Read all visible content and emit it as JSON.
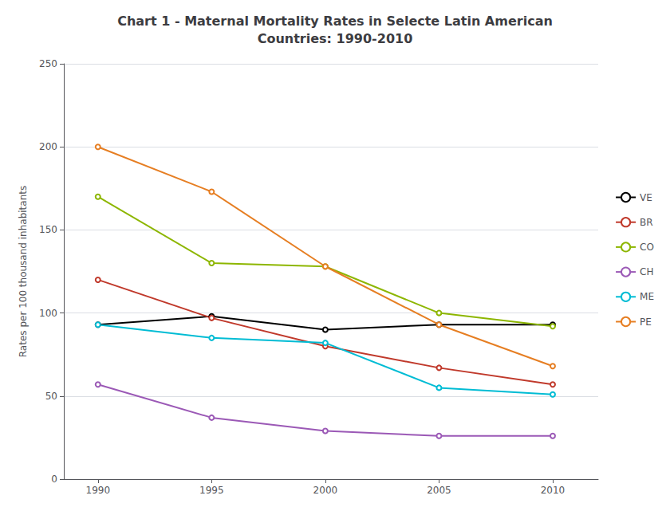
{
  "chart_data": {
    "type": "line",
    "title": "Chart 1 - Maternal Mortality Rates in Selecte Latin American\nCountries: 1990-2010",
    "ylabel": "Rates per 100 thousand inhabitants",
    "x": [
      1990,
      1995,
      2000,
      2005,
      2010
    ],
    "series": [
      {
        "name": "VE",
        "color": "#000000",
        "values": [
          93,
          98,
          90,
          93,
          93
        ]
      },
      {
        "name": "BR",
        "color": "#c0392b",
        "values": [
          120,
          97,
          80,
          67,
          57
        ]
      },
      {
        "name": "CO",
        "color": "#8db600",
        "values": [
          170,
          130,
          128,
          100,
          92
        ]
      },
      {
        "name": "CH",
        "color": "#9b59b6",
        "values": [
          57,
          37,
          29,
          26,
          26
        ]
      },
      {
        "name": "ME",
        "color": "#00bcd4",
        "values": [
          93,
          85,
          82,
          55,
          51
        ]
      },
      {
        "name": "PE",
        "color": "#e67e22",
        "values": [
          200,
          173,
          128,
          93,
          68
        ]
      }
    ],
    "xlim": [
      1988.5,
      2012
    ],
    "xticks": [
      1990,
      1995,
      2000,
      2005,
      2010
    ],
    "ylim": [
      0,
      250
    ],
    "yticks": [
      0,
      50,
      100,
      150,
      200,
      250
    ],
    "grid": true,
    "legend": "right"
  }
}
